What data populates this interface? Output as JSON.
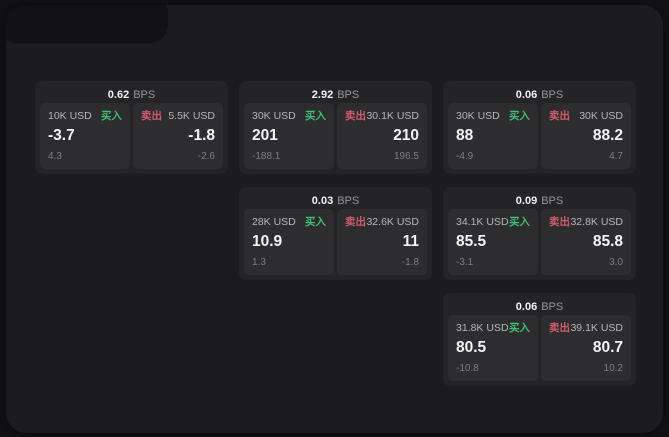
{
  "theme": {
    "page_bg": "#121214",
    "panel_bg": "#1c1c1e",
    "card_bg": "#242427",
    "tile_bg": "#2d2d30",
    "accent_green": "#3fbf70",
    "accent_red": "#d4596b"
  },
  "labels": {
    "bps_unit": "BPS",
    "buy": "买入",
    "sell": "卖出"
  },
  "cards": [
    {
      "bps": "0.62",
      "buy": {
        "size": "10K USD",
        "price": "-3.7",
        "delta": "4.3"
      },
      "sell": {
        "size": "5.5K USD",
        "price": "-1.8",
        "delta": "-2.6"
      }
    },
    {
      "bps": "2.92",
      "buy": {
        "size": "30K USD",
        "price": "201",
        "delta": "-188.1"
      },
      "sell": {
        "size": "30.1K USD",
        "price": "210",
        "delta": "196.5"
      }
    },
    {
      "bps": "0.06",
      "buy": {
        "size": "30K USD",
        "price": "88",
        "delta": "-4.9"
      },
      "sell": {
        "size": "30K USD",
        "price": "88.2",
        "delta": "4.7"
      }
    },
    {
      "bps": "0.03",
      "buy": {
        "size": "28K USD",
        "price": "10.9",
        "delta": "1.3"
      },
      "sell": {
        "size": "32.6K USD",
        "price": "11",
        "delta": "-1.8"
      }
    },
    {
      "bps": "0.09",
      "buy": {
        "size": "34.1K USD",
        "price": "85.5",
        "delta": "-3.1"
      },
      "sell": {
        "size": "32.8K USD",
        "price": "85.8",
        "delta": "3.0"
      }
    },
    {
      "bps": "0.06",
      "buy": {
        "size": "31.8K USD",
        "price": "80.5",
        "delta": "-10.8"
      },
      "sell": {
        "size": "39.1K USD",
        "price": "80.7",
        "delta": "10.2"
      }
    }
  ]
}
